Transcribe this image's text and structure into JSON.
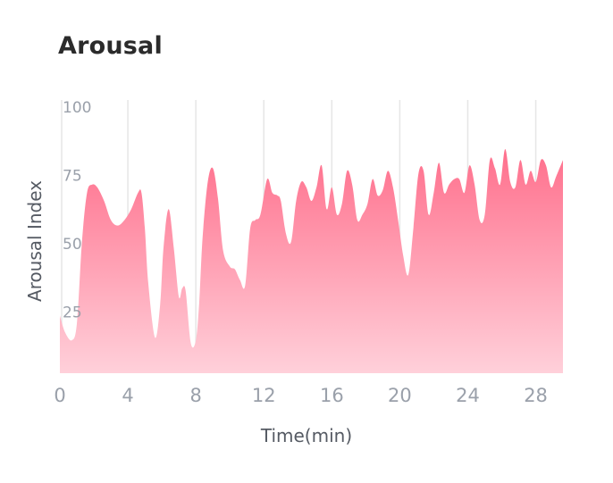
{
  "title": "Arousal",
  "chart_data": {
    "type": "area",
    "title": "Arousal",
    "xlabel": "Time(min)",
    "ylabel": "Arousal Index",
    "xlim": [
      0,
      29.6
    ],
    "ylim": [
      0,
      100
    ],
    "x_ticks": [
      0,
      4,
      8,
      12,
      16,
      20,
      24,
      28
    ],
    "y_ticks": [
      25,
      50,
      75,
      100
    ],
    "grid": "vertical",
    "fill_color_top": "#ff6f8c",
    "fill_color_bottom": "#ffd0da",
    "series": [
      {
        "x": [
          0,
          0.3,
          0.7,
          1.0,
          1.3,
          1.6,
          1.9,
          2.2,
          2.6,
          3.0,
          3.4,
          3.8,
          4.2,
          4.6,
          4.8,
          5.0,
          5.2,
          5.6,
          5.9,
          6.1,
          6.4,
          6.7,
          7.0,
          7.2,
          7.4,
          7.7,
          8.0,
          8.2,
          8.4,
          8.7,
          9.0,
          9.3,
          9.6,
          10.0,
          10.3,
          10.6,
          10.9,
          11.2,
          11.5,
          11.8,
          12.2,
          12.5,
          12.8,
          13.0,
          13.3,
          13.6,
          13.9,
          14.2,
          14.5,
          14.8,
          15.1,
          15.4,
          15.7,
          16.0,
          16.3,
          16.6,
          16.9,
          17.2,
          17.5,
          17.8,
          18.1,
          18.4,
          18.7,
          19.0,
          19.3,
          19.6,
          19.9,
          20.2,
          20.5,
          20.8,
          21.1,
          21.4,
          21.7,
          22.0,
          22.3,
          22.6,
          22.9,
          23.2,
          23.5,
          23.8,
          24.1,
          24.4,
          24.7,
          25.0,
          25.3,
          25.6,
          25.9,
          26.2,
          26.5,
          26.8,
          27.1,
          27.4,
          27.7,
          28.0,
          28.3,
          28.6,
          28.9,
          29.2,
          29.6
        ],
        "values": [
          23,
          17,
          14,
          20,
          50,
          68,
          71,
          70,
          65,
          58,
          56,
          58,
          62,
          68,
          68,
          55,
          35,
          15,
          27,
          48,
          62,
          48,
          30,
          33,
          32,
          13,
          14,
          28,
          52,
          72,
          77,
          66,
          47,
          41,
          40,
          36,
          34,
          55,
          58,
          60,
          73,
          68,
          67,
          65,
          53,
          50,
          65,
          72,
          70,
          65,
          70,
          78,
          62,
          70,
          60,
          64,
          76,
          71,
          58,
          60,
          64,
          73,
          67,
          69,
          76,
          70,
          58,
          45,
          38,
          55,
          75,
          76,
          60,
          68,
          79,
          68,
          71,
          73,
          73,
          68,
          78,
          71,
          58,
          60,
          80,
          77,
          71,
          84,
          72,
          70,
          80,
          71,
          76,
          72,
          80,
          78,
          70,
          74,
          80
        ]
      }
    ]
  }
}
